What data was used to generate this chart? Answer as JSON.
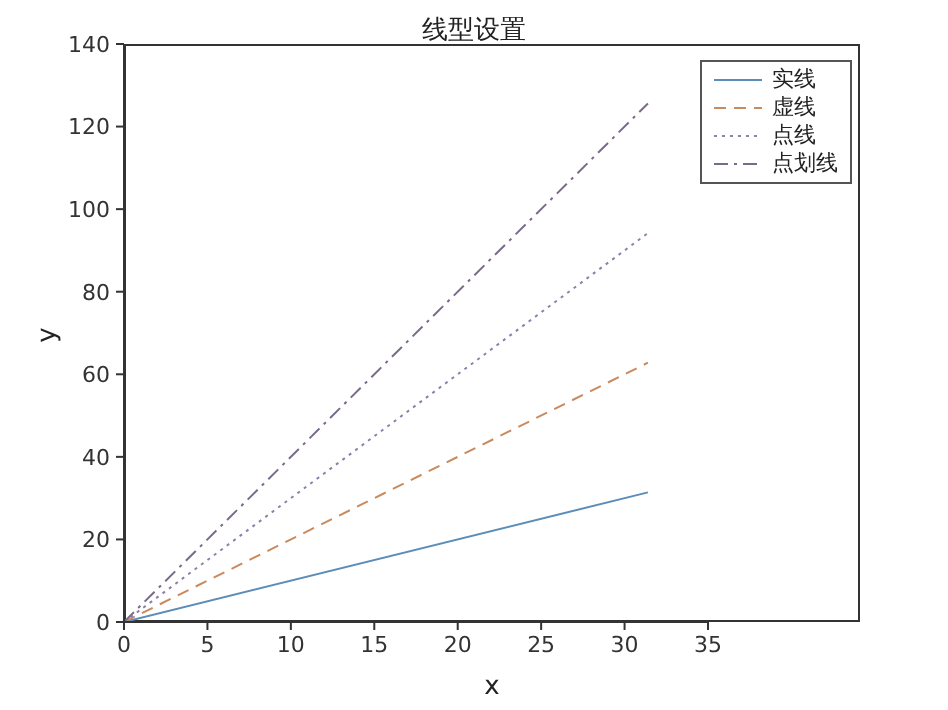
{
  "chart_data": {
    "type": "line",
    "title": "线型设置",
    "xlabel": "x",
    "ylabel": "y",
    "x": [
      0,
      31.4
    ],
    "xlim": [
      0,
      35
    ],
    "xticks": [
      0,
      5,
      10,
      15,
      20,
      25,
      30,
      35
    ],
    "ylim": [
      0,
      140
    ],
    "yticks": [
      0,
      20,
      40,
      60,
      80,
      100,
      120,
      140
    ],
    "legend": "top right",
    "marker": "none",
    "series": [
      {
        "name": "实线",
        "color": "#5b8db8",
        "values": [
          0,
          31.4
        ],
        "line_style": "solid"
      },
      {
        "name": "虚线",
        "color": "#c98a5e",
        "values": [
          0,
          62.8
        ],
        "line_style": "dashed"
      },
      {
        "name": "点线",
        "color": "#8a80a8",
        "values": [
          0,
          94.2
        ],
        "line_style": "dotted"
      },
      {
        "name": "点划线",
        "color": "#7a6a8a",
        "values": [
          0,
          125.6
        ],
        "line_style": "dashdot"
      }
    ]
  }
}
